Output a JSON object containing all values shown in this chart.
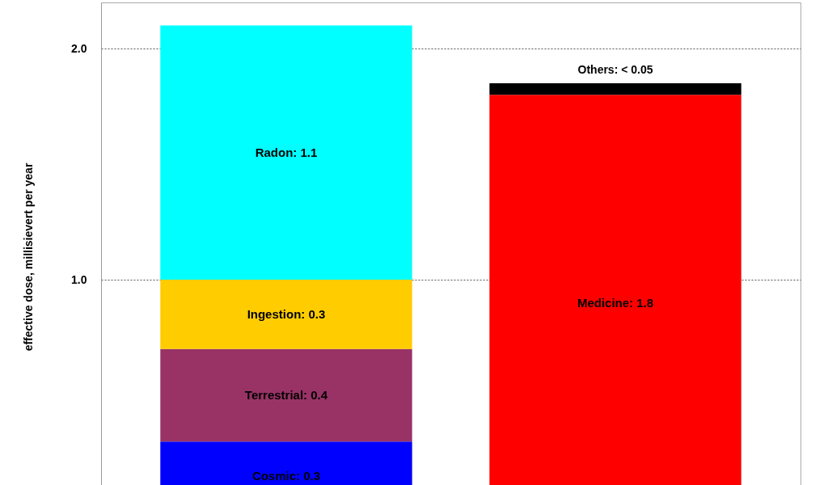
{
  "chart_data": {
    "type": "bar",
    "stacked": true,
    "ylabel": "effective dose, millisievert  per year",
    "categories": [
      null,
      null
    ],
    "series": [
      {
        "color": "#0000ff",
        "values": [
          0.3,
          null
        ],
        "value_labels": [
          "Cosmic: 0.3",
          null
        ]
      },
      {
        "color": "#993366",
        "values": [
          0.4,
          null
        ],
        "value_labels": [
          "Terrestrial: 0.4",
          null
        ]
      },
      {
        "color": "#ffcc00",
        "values": [
          0.3,
          null
        ],
        "value_labels": [
          "Ingestion: 0.3",
          null
        ]
      },
      {
        "color": "#00ffff",
        "values": [
          1.1,
          null
        ],
        "value_labels": [
          "Radon: 1.1",
          null
        ]
      },
      {
        "color": "#ff0000",
        "values": [
          null,
          1.8
        ],
        "value_labels": [
          null,
          "Medicine: 1.8"
        ]
      },
      {
        "color": "#000000",
        "values": [
          null,
          0.05
        ],
        "value_labels": [
          null,
          "Others: < 0.05"
        ]
      }
    ],
    "ylim": [
      0,
      2.2
    ],
    "yticks": [
      {
        "value": 1,
        "label": "1.0"
      },
      {
        "value": 2,
        "label": "2.0"
      }
    ],
    "grid": "y"
  }
}
